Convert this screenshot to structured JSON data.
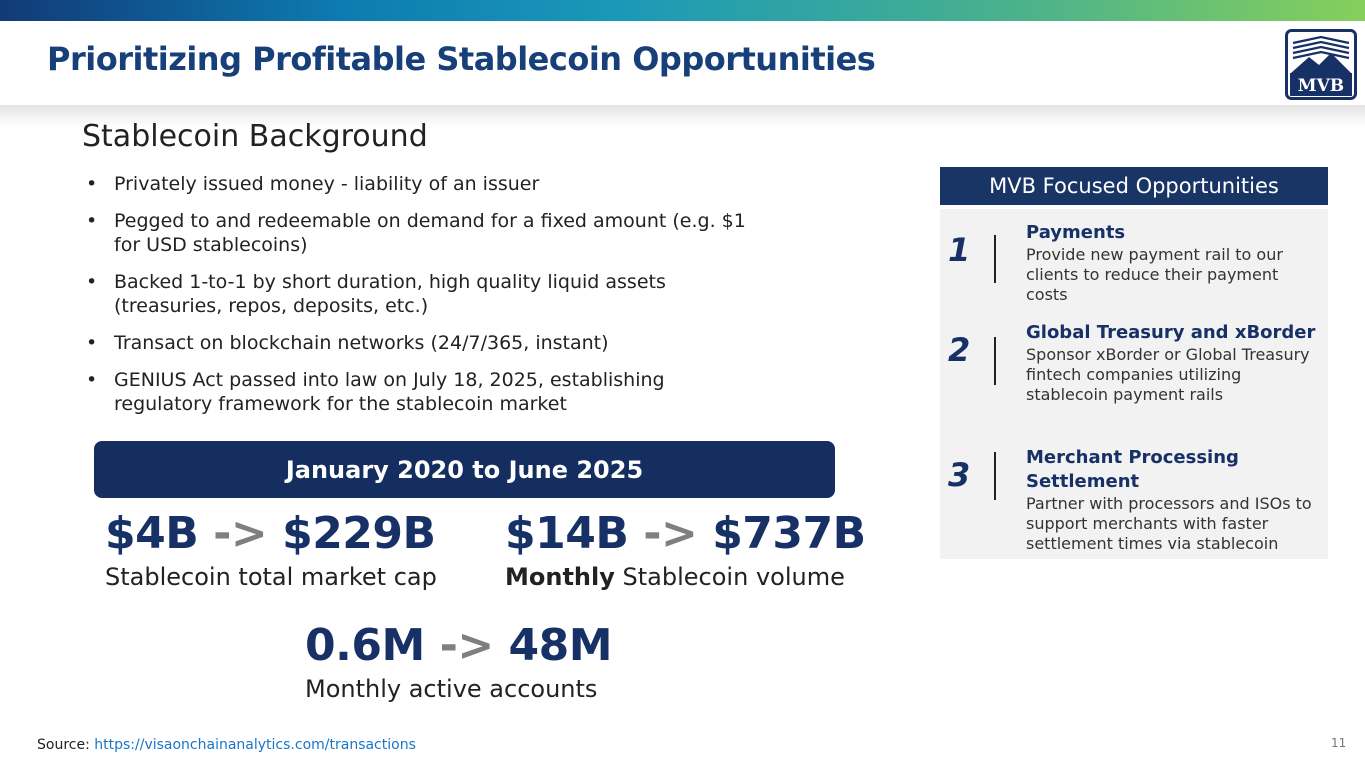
{
  "title": "Prioritizing Profitable Stablecoin Opportunities",
  "logo": {
    "text": "MVB"
  },
  "section_title": "Stablecoin Background",
  "bullets": [
    "Privately issued money - liability of an issuer",
    "Pegged to and redeemable on demand for a fixed amount (e.g. $1 for USD stablecoins)",
    "Backed 1-to-1 by short duration, high quality liquid assets (treasuries, repos, deposits, etc.)",
    "Transact on blockchain networks (24/7/365, instant)",
    "GENIUS Act passed into law on July 18, 2025, establishing regulatory framework for the stablecoin market"
  ],
  "banner": "January 2020 to June 2025",
  "stats": {
    "market_cap": {
      "from": "$4B",
      "arrow": "->",
      "to": "$229B",
      "caption": "Stablecoin total market cap"
    },
    "volume": {
      "from": "$14B",
      "arrow": "->",
      "to": "$737B",
      "caption_bold": "Monthly",
      "caption": "Stablecoin volume"
    },
    "accounts": {
      "from": "0.6M",
      "arrow": "->",
      "to": "48M",
      "caption": "Monthly active accounts"
    }
  },
  "opportunities": {
    "header": "MVB Focused Opportunities",
    "items": [
      {
        "num": "1",
        "heading": "Payments",
        "desc": "Provide new payment rail to our clients to reduce their payment costs"
      },
      {
        "num": "2",
        "heading": "Global Treasury and xBorder",
        "desc": "Sponsor xBorder or Global Treasury fintech companies utilizing stablecoin payment rails"
      },
      {
        "num": "3",
        "heading": "Merchant Processing Settlement",
        "desc": "Partner with processors and ISOs to support merchants with faster settlement times via stablecoin"
      }
    ]
  },
  "source": {
    "label": "Source:",
    "url": "https://visaonchainanalytics.com/transactions"
  },
  "page_number": "11",
  "colors": {
    "navy": "#173066",
    "banner": "#132e5f",
    "link": "#1976c7",
    "panel": "#f2f2f2"
  }
}
